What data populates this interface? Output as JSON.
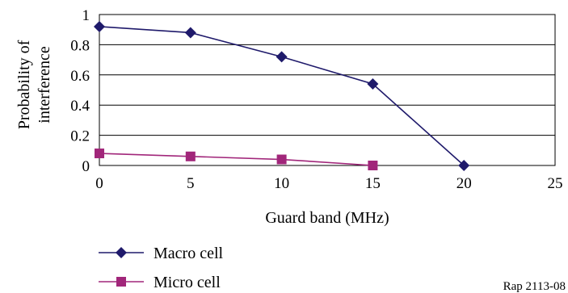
{
  "chart_data": {
    "type": "line",
    "title": "",
    "xlabel": "Guard band (MHz)",
    "ylabel": [
      "Probability of",
      "interference"
    ],
    "xlim": [
      0,
      25
    ],
    "ylim": [
      0,
      1
    ],
    "xticks": [
      0,
      5,
      10,
      15,
      20,
      25
    ],
    "yticks": [
      0,
      0.2,
      0.4,
      0.6,
      0.8,
      1
    ],
    "xtick_labels": [
      "0",
      "5",
      "10",
      "15",
      "20",
      "25"
    ],
    "ytick_labels": [
      "0",
      "0.2",
      "0.4",
      "0.6",
      "0.8",
      "1"
    ],
    "grid": "horizontal",
    "legend_position": "bottom-left",
    "series": [
      {
        "name": "Macro cell",
        "marker": "diamond",
        "color": "#1f1a6b",
        "x": [
          0,
          5,
          10,
          15,
          20
        ],
        "y": [
          0.92,
          0.88,
          0.72,
          0.54,
          0.0
        ]
      },
      {
        "name": "Micro cell",
        "marker": "square",
        "color": "#a1267a",
        "x": [
          0,
          5,
          10,
          15
        ],
        "y": [
          0.08,
          0.06,
          0.04,
          0.0
        ]
      }
    ]
  },
  "credit": "Rap 2113-08"
}
